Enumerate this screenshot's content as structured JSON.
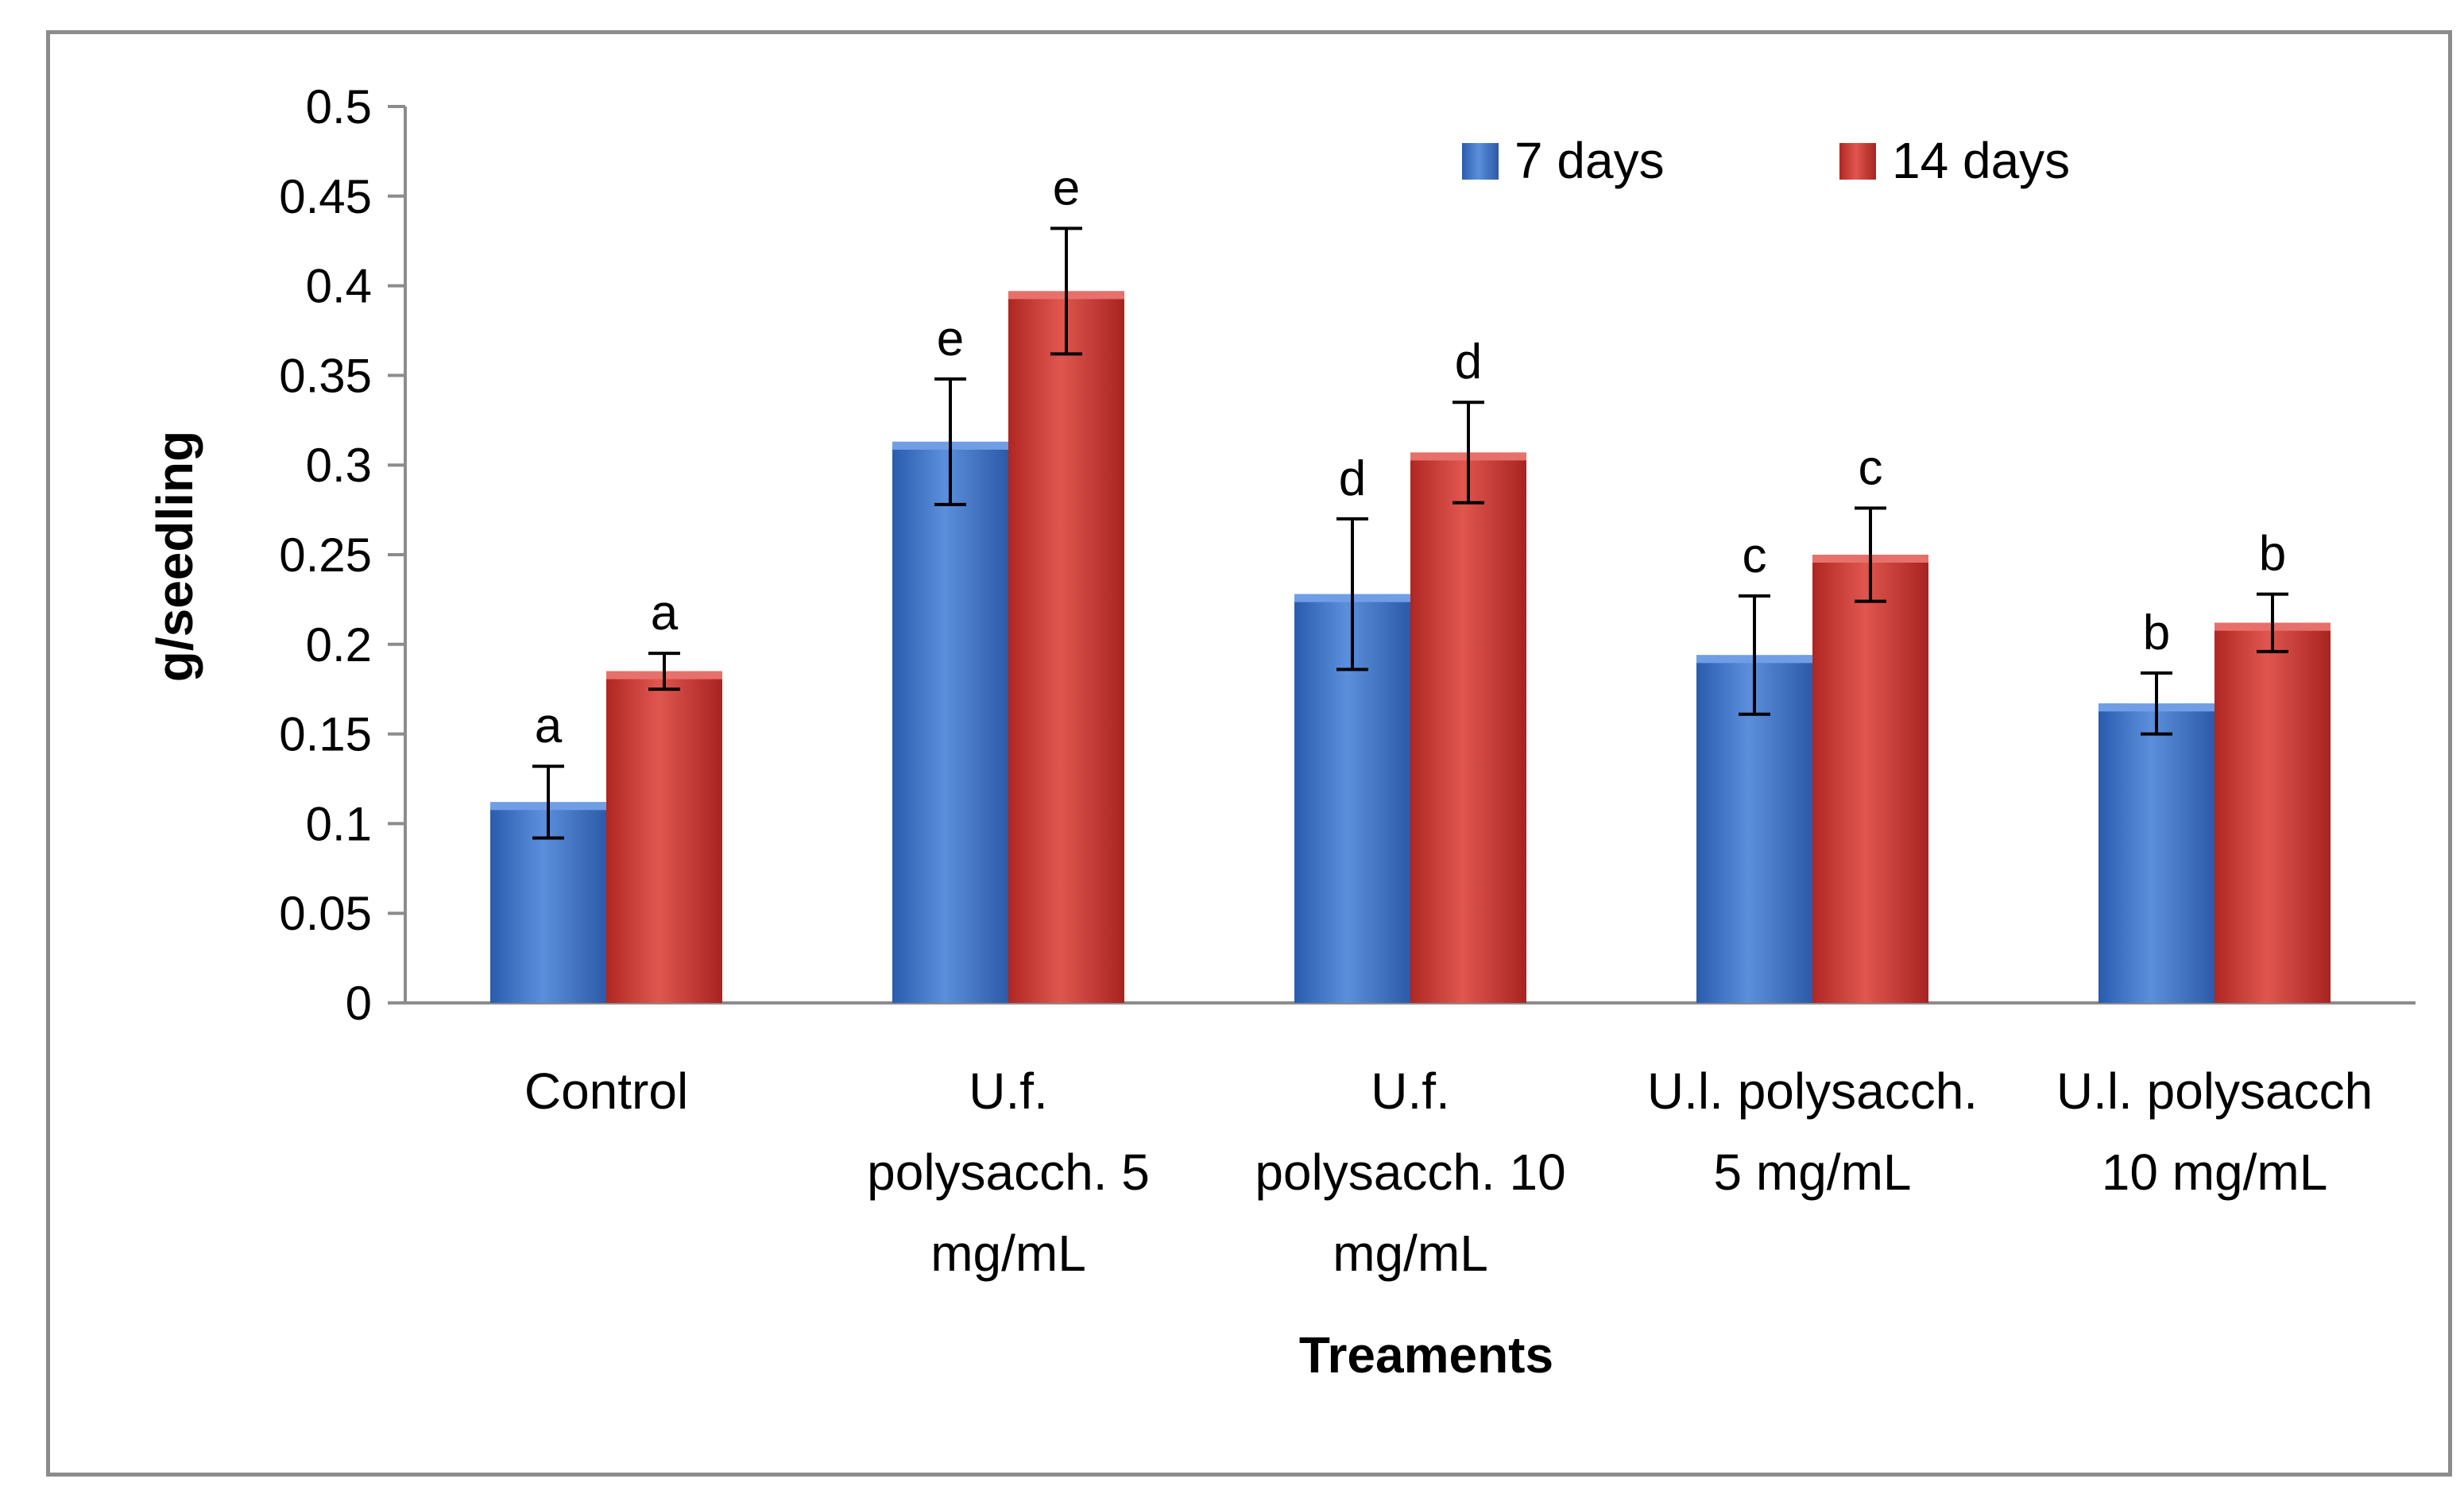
{
  "chart_data": {
    "type": "bar",
    "title": "",
    "xlabel": "Treaments",
    "ylabel": "g/seedling",
    "ylim": [
      0,
      0.5
    ],
    "yticks": [
      "0",
      "0.05",
      "0.1",
      "0.15",
      "0.2",
      "0.25",
      "0.3",
      "0.35",
      "0.4",
      "0.45",
      "0.5"
    ],
    "legend_position": "top-right",
    "categories": [
      [
        "Control"
      ],
      [
        "U.f.",
        "polysacch. 5",
        "mg/mL"
      ],
      [
        "U.f.",
        "polysacch. 10",
        "mg/mL"
      ],
      [
        "U.l. polysacch.",
        "5 mg/mL"
      ],
      [
        "U.l. polysacch",
        "10  mg/mL"
      ]
    ],
    "series": [
      {
        "name": "7 days",
        "color": "#3a6fc4",
        "values": [
          0.112,
          0.313,
          0.228,
          0.194,
          0.167
        ],
        "errors": [
          0.02,
          0.035,
          0.042,
          0.033,
          0.017
        ],
        "sig_labels": [
          "a",
          "e",
          "d",
          "c",
          "b"
        ]
      },
      {
        "name": "14 days",
        "color": "#c9302c",
        "values": [
          0.185,
          0.397,
          0.307,
          0.25,
          0.212
        ],
        "errors": [
          0.01,
          0.035,
          0.028,
          0.026,
          0.016
        ],
        "sig_labels": [
          "a",
          "e",
          "d",
          "c",
          "b"
        ]
      }
    ]
  }
}
